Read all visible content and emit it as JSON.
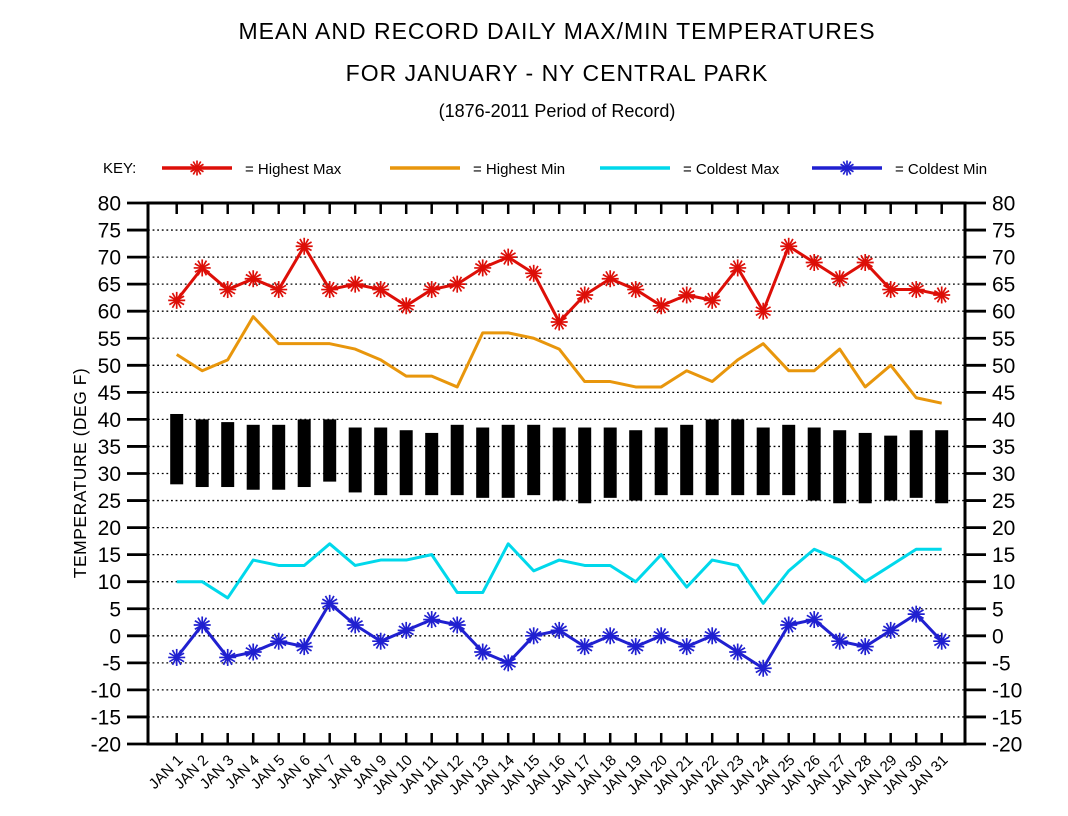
{
  "title": {
    "line1": "MEAN AND RECORD DAILY MAX/MIN TEMPERATURES",
    "line2": "FOR JANUARY - NY CENTRAL PARK",
    "line3": "(1876-2011 Period of Record)"
  },
  "key": {
    "label": "KEY:",
    "entries": [
      {
        "id": "highest-max",
        "label": "= Highest Max",
        "color": "#dd0f08",
        "marker": "asterisk"
      },
      {
        "id": "highest-min",
        "label": "= Highest Min",
        "color": "#e8960c",
        "marker": "none"
      },
      {
        "id": "coldest-max",
        "label": "= Coldest Max",
        "color": "#00d8eb",
        "marker": "none"
      },
      {
        "id": "coldest-min",
        "label": "= Coldest Min",
        "color": "#2020d0",
        "marker": "asterisk"
      }
    ]
  },
  "chart_data": {
    "type": "line",
    "title": "MEAN AND RECORD DAILY MAX/MIN TEMPERATURES FOR JANUARY - NY CENTRAL PARK (1876-2011 Period of Record)",
    "xlabel": "",
    "ylabel": "TEMPERATURE (DEG F)",
    "ylim": [
      -20,
      80
    ],
    "ytick_step": 5,
    "yticks": [
      80,
      75,
      70,
      65,
      60,
      55,
      50,
      45,
      40,
      35,
      30,
      25,
      20,
      15,
      10,
      5,
      0,
      -5,
      -10,
      -15,
      -20
    ],
    "grid": "horizontal-dotted-every-5-degrees",
    "legend_position": "top",
    "x_categories": [
      "JAN 1",
      "JAN 2",
      "JAN 3",
      "JAN 4",
      "JAN 5",
      "JAN 6",
      "JAN 7",
      "JAN 8",
      "JAN 9",
      "JAN 10",
      "JAN 11",
      "JAN 12",
      "JAN 13",
      "JAN 14",
      "JAN 15",
      "JAN 16",
      "JAN 17",
      "JAN 18",
      "JAN 19",
      "JAN 20",
      "JAN 21",
      "JAN 22",
      "JAN 23",
      "JAN 24",
      "JAN 25",
      "JAN 26",
      "JAN 27",
      "JAN 28",
      "JAN 29",
      "JAN 30",
      "JAN 31"
    ],
    "series": [
      {
        "name": "Highest Max",
        "type": "line",
        "color": "#dd0f08",
        "marker": "asterisk",
        "values": [
          62,
          68,
          64,
          66,
          64,
          72,
          64,
          65,
          64,
          61,
          64,
          65,
          68,
          70,
          67,
          58,
          63,
          66,
          64,
          61,
          63,
          62,
          68,
          60,
          72,
          69,
          66,
          69,
          64,
          64,
          63
        ]
      },
      {
        "name": "Highest Min",
        "type": "line",
        "color": "#e8960c",
        "marker": "none",
        "values": [
          52,
          49,
          51,
          59,
          54,
          54,
          54,
          53,
          51,
          48,
          48,
          46,
          56,
          56,
          55,
          53,
          47,
          47,
          46,
          46,
          49,
          47,
          51,
          54,
          49,
          49,
          53,
          46,
          50,
          44,
          43
        ]
      },
      {
        "name": "Coldest Max",
        "type": "line",
        "color": "#00d8eb",
        "marker": "none",
        "values": [
          10,
          10,
          7,
          14,
          13,
          13,
          17,
          13,
          14,
          14,
          15,
          8,
          8,
          17,
          12,
          14,
          13,
          13,
          10,
          15,
          9,
          14,
          13,
          6,
          12,
          16,
          14,
          10,
          13,
          16,
          16
        ]
      },
      {
        "name": "Coldest Min",
        "type": "line",
        "color": "#2020d0",
        "marker": "asterisk",
        "values": [
          -4,
          2,
          -4,
          -3,
          -1,
          -2,
          6,
          2,
          -1,
          1,
          3,
          2,
          -3,
          -5,
          0,
          1,
          -2,
          0,
          -2,
          0,
          -2,
          0,
          -3,
          -6,
          2,
          3,
          -1,
          -2,
          1,
          4,
          -1
        ]
      },
      {
        "name": "Mean Daily Max (bar top)",
        "type": "bar-range-high",
        "color": "#000000",
        "values": [
          41,
          40,
          39.5,
          39,
          39,
          40,
          40,
          38.5,
          38.5,
          38,
          37.5,
          39,
          38.5,
          39,
          39,
          38.5,
          38.5,
          38.5,
          38,
          38.5,
          39,
          40,
          40,
          38.5,
          39,
          38.5,
          38,
          37.5,
          37,
          38,
          38
        ]
      },
      {
        "name": "Mean Daily Min (bar bottom)",
        "type": "bar-range-low",
        "color": "#000000",
        "values": [
          28,
          27.5,
          27.5,
          27,
          27,
          27.5,
          28.5,
          26.5,
          26,
          26,
          26,
          26,
          25.5,
          25.5,
          26,
          25,
          24.5,
          25.5,
          25,
          26,
          26,
          26,
          26,
          26,
          26,
          25,
          24.5,
          24.5,
          25,
          25.5,
          24.5
        ]
      }
    ]
  }
}
